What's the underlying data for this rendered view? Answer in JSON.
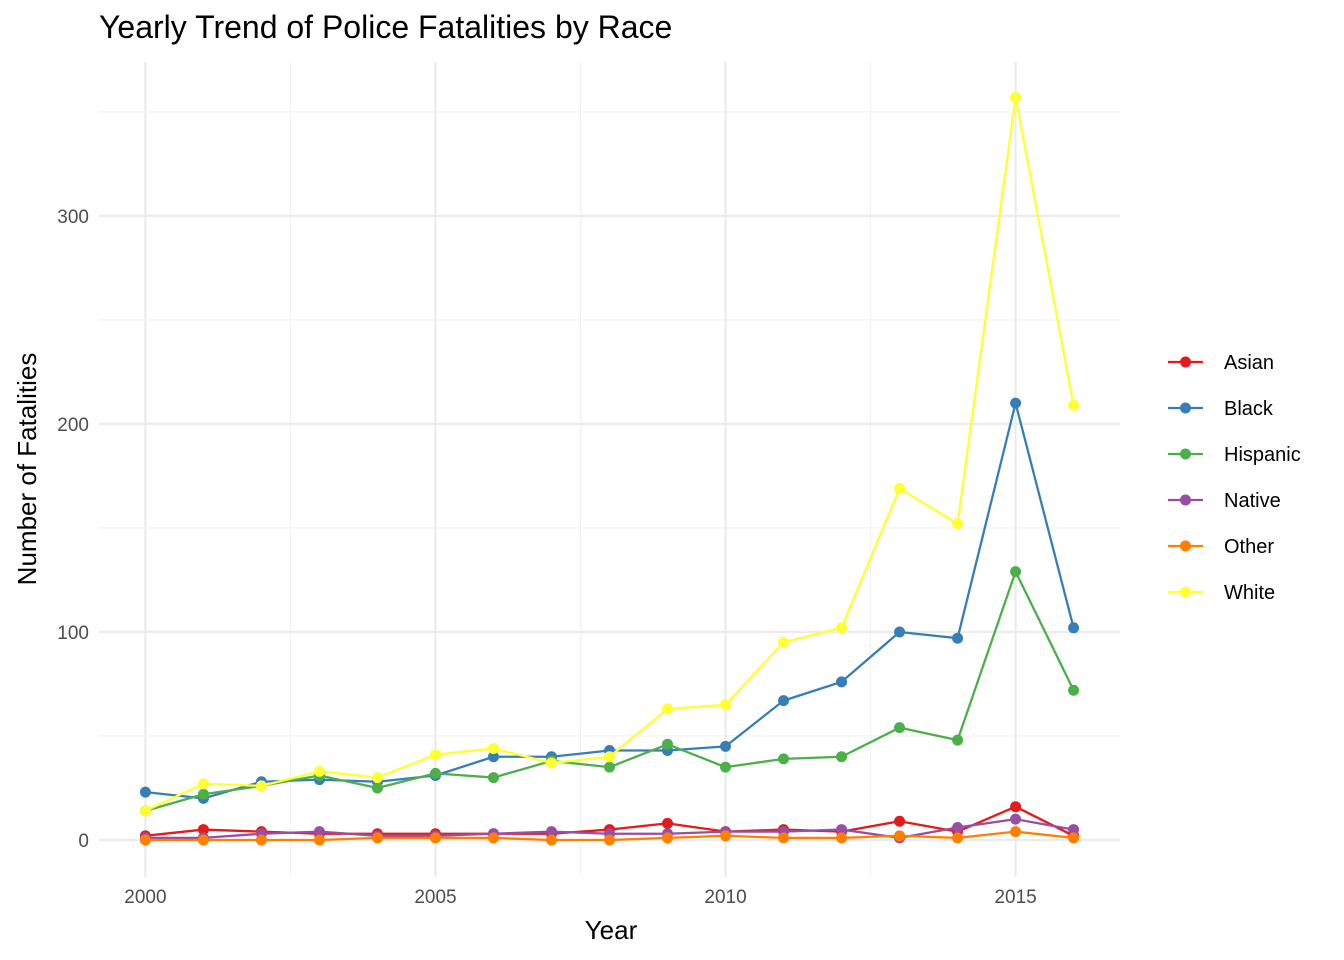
{
  "chart_data": {
    "type": "line",
    "title": "Yearly Trend of Police Fatalities by Race",
    "xlabel": "Year",
    "ylabel": "Number of Fatalities",
    "x": [
      2000,
      2001,
      2002,
      2003,
      2004,
      2005,
      2006,
      2007,
      2008,
      2009,
      2010,
      2011,
      2012,
      2013,
      2014,
      2015,
      2016
    ],
    "xlim": [
      1999.2,
      2016.8
    ],
    "ylim": [
      -17.8,
      374
    ],
    "x_ticks": [
      2000,
      2005,
      2010,
      2015
    ],
    "y_ticks": [
      0,
      100,
      200,
      300
    ],
    "grid": true,
    "legend_position": "right",
    "series": [
      {
        "name": "Asian",
        "color": "#E41A1C",
        "values": [
          2,
          5,
          4,
          3,
          3,
          3,
          3,
          3,
          5,
          8,
          4,
          5,
          4,
          9,
          4,
          16,
          2
        ]
      },
      {
        "name": "Black",
        "color": "#377EB8",
        "values": [
          23,
          20,
          28,
          29,
          28,
          31,
          40,
          40,
          43,
          43,
          45,
          67,
          76,
          100,
          97,
          210,
          102
        ]
      },
      {
        "name": "Hispanic",
        "color": "#4DAF4A",
        "values": [
          14,
          22,
          26,
          31,
          25,
          32,
          30,
          38,
          35,
          46,
          35,
          39,
          40,
          54,
          48,
          129,
          72
        ]
      },
      {
        "name": "Native",
        "color": "#984EA3",
        "values": [
          1,
          1,
          3,
          4,
          2,
          2,
          3,
          4,
          3,
          3,
          4,
          4,
          5,
          1,
          6,
          10,
          5
        ]
      },
      {
        "name": "Other",
        "color": "#FF7F00",
        "values": [
          0,
          0,
          0,
          0,
          1,
          1,
          1,
          0,
          0,
          1,
          2,
          1,
          1,
          2,
          1,
          4,
          1
        ]
      },
      {
        "name": "White",
        "color": "#FFFF33",
        "values": [
          14,
          27,
          26,
          33,
          30,
          41,
          44,
          37,
          40,
          63,
          65,
          95,
          102,
          169,
          152,
          357,
          209
        ]
      }
    ]
  }
}
